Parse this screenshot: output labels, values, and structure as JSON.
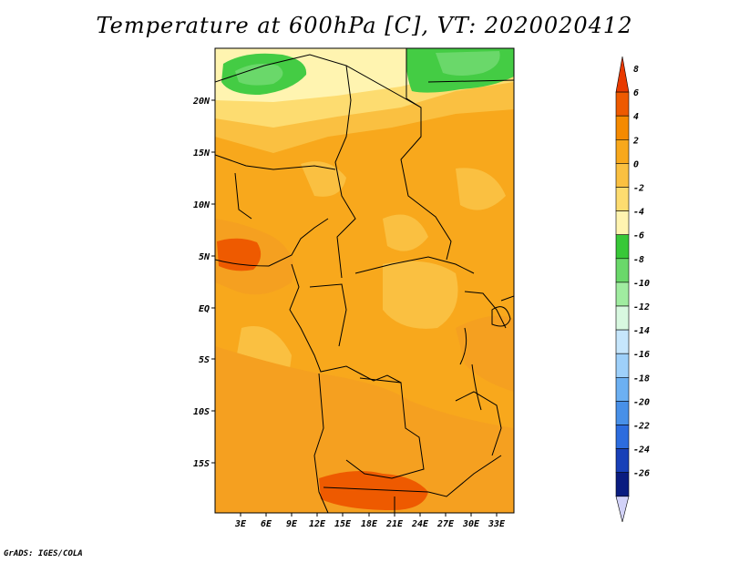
{
  "title": "Temperature at 600hPa [C], VT: 2020020412",
  "credit": "GrADS: IGES/COLA",
  "map": {
    "lat_labels": [
      "20N",
      "15N",
      "10N",
      "5N",
      "EQ",
      "5S",
      "10S",
      "15S"
    ],
    "lon_labels": [
      "3E",
      "6E",
      "9E",
      "12E",
      "15E",
      "18E",
      "21E",
      "24E",
      "27E",
      "30E",
      "33E"
    ]
  },
  "colorbar": {
    "labels": [
      "8",
      "6",
      "4",
      "2",
      "0",
      "-2",
      "-4",
      "-6",
      "-8",
      "-10",
      "-12",
      "-14",
      "-16",
      "-18",
      "-20",
      "-22",
      "-24",
      "-26"
    ],
    "colors": [
      "#e83a00",
      "#ee5a00",
      "#f58a00",
      "#f8a81c",
      "#fac041",
      "#fddc70",
      "#fff4b0",
      "#38c838",
      "#6ad86a",
      "#a0eca0",
      "#d8f8e0",
      "#c6e6fc",
      "#9ed0fa",
      "#6cb0f2",
      "#4890e8",
      "#2c6cde",
      "#1840b8",
      "#0a1c80",
      "#d2d2f8"
    ]
  },
  "legend_colors": {
    "warm_deep": "#e85c10",
    "warm": "#f5a020",
    "mild": "#fab84a",
    "cool": "#fff4b0",
    "green": "#44cc44"
  }
}
